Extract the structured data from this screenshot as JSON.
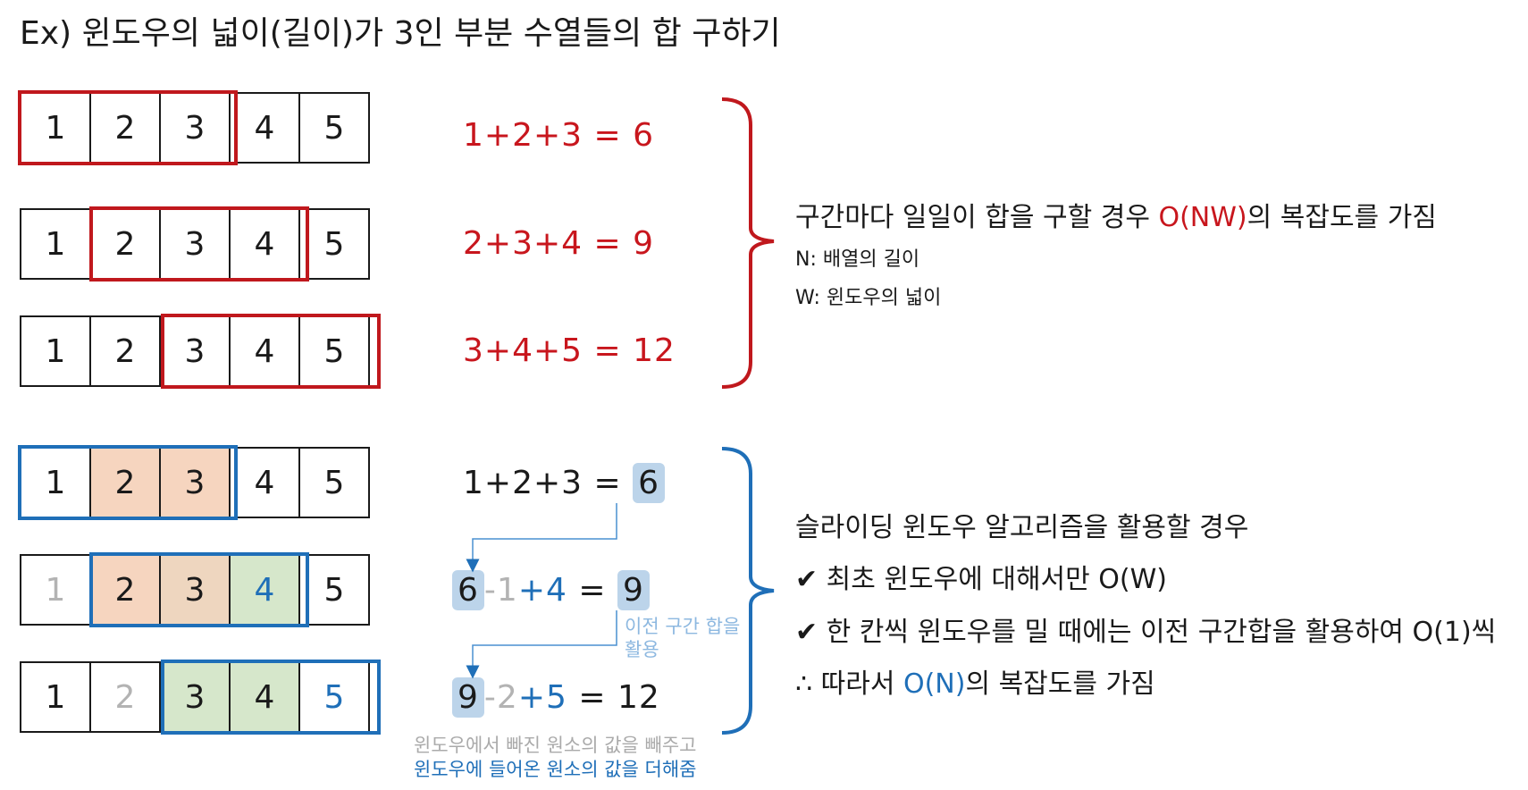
{
  "title": "Ex) 윈도우의 넓이(길이)가 3인 부분 수열들의 합 구하기",
  "colors": {
    "red": "#c0181d",
    "blue": "#1f6fb8",
    "peach": "#f6d5bf",
    "green": "#d6e7cb",
    "highlight": "#bcd4ea"
  },
  "rows_top": [
    {
      "cells": [
        "1",
        "2",
        "3",
        "4",
        "5"
      ],
      "equation": "1+2+3  =  6"
    },
    {
      "cells": [
        "1",
        "2",
        "3",
        "4",
        "5"
      ],
      "equation": "2+3+4  =  9"
    },
    {
      "cells": [
        "1",
        "2",
        "3",
        "4",
        "5"
      ],
      "equation": "3+4+5  =  12"
    }
  ],
  "rows_bottom": [
    {
      "cells": [
        "1",
        "2",
        "3",
        "4",
        "5"
      ],
      "eq1": {
        "prefix": "1+2+3  = ",
        "result": "6"
      }
    },
    {
      "cells": [
        "1",
        "2",
        "3",
        "4",
        "5"
      ],
      "eq2": {
        "prev": "6",
        "minus": "-1",
        "plus": "+4",
        "equals": "  = ",
        "result": "9"
      }
    },
    {
      "cells": [
        "1",
        "2",
        "3",
        "4",
        "5"
      ],
      "eq3": {
        "prev": "9",
        "minus": "-2",
        "plus": "+5",
        "equals": "  =  ",
        "result": "12"
      }
    }
  ],
  "side_note": "이전 구간 합을\n활용",
  "side_note_l1": "이전 구간 합을",
  "side_note_l2": "활용",
  "caption_1": "윈도우에서 빠진 원소의 값을 빼주고",
  "caption_2": "윈도우에 들어온 원소의 값을 더해줌",
  "right_top": {
    "main_prefix": "구간마다 일일이 합을 구할 경우 ",
    "main_highlight": "O(NW)",
    "main_suffix": "의 복잡도를 가짐",
    "n_def": "N: 배열의 길이",
    "w_def": "W: 윈도우의 넓이"
  },
  "right_bottom": {
    "heading": "슬라이딩 윈도우 알고리즘을 활용할 경우",
    "check1": "✔ 최초 윈도우에 대해서만 O(W)",
    "check2": "✔ 한 칸씩 윈도우를 밀 때에는 이전 구간합을  활용하여 O(1)씩",
    "therefore_prefix": "∴ 따라서 ",
    "therefore_highlight": "O(N)",
    "therefore_suffix": "의 복잡도를 가짐"
  }
}
